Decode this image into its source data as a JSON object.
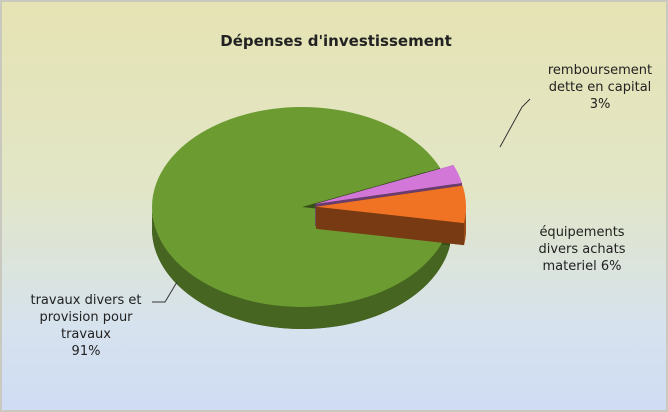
{
  "chart_data": {
    "type": "pie",
    "title": "Dépenses d'investissement",
    "categories": [
      "remboursement dette en capital",
      "équipements divers achats materiel",
      "travaux divers et provision pour travaux"
    ],
    "values": [
      3,
      6,
      91
    ],
    "value_labels": [
      "3%",
      "6%",
      "91%"
    ],
    "colors": [
      "#d277d8",
      "#f07324",
      "#6c9b32"
    ]
  }
}
